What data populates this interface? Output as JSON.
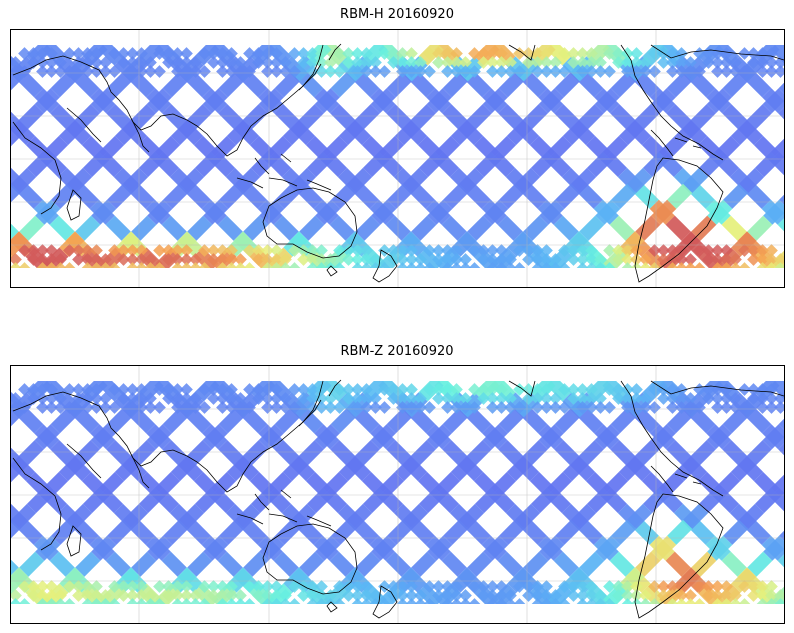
{
  "panels": [
    {
      "title": "RBM-H 20160920",
      "colormap": {
        "low": "#6464f0",
        "mid1": "#5ab4f5",
        "mid2": "#66f0e0",
        "mid3": "#e6f07a",
        "high1": "#f5a050",
        "high2": "#d25a5a"
      },
      "high_zones": [
        {
          "region": "southern-ocean-west",
          "intensity": 0.85
        },
        {
          "region": "south-atlantic",
          "intensity": 0.9
        },
        {
          "region": "north-pacific-arc",
          "intensity": 0.7
        }
      ]
    },
    {
      "title": "RBM-Z 20160920",
      "colormap": {
        "low": "#6464f0",
        "mid1": "#5ab4f5",
        "mid2": "#66f0e0",
        "mid3": "#e6f07a",
        "high1": "#f5a050",
        "high2": "#d25a5a"
      },
      "high_zones": [
        {
          "region": "southern-ocean-west",
          "intensity": 0.45
        },
        {
          "region": "south-atlantic",
          "intensity": 0.65
        },
        {
          "region": "north-pacific-arc",
          "intensity": 0.35
        }
      ]
    }
  ]
}
